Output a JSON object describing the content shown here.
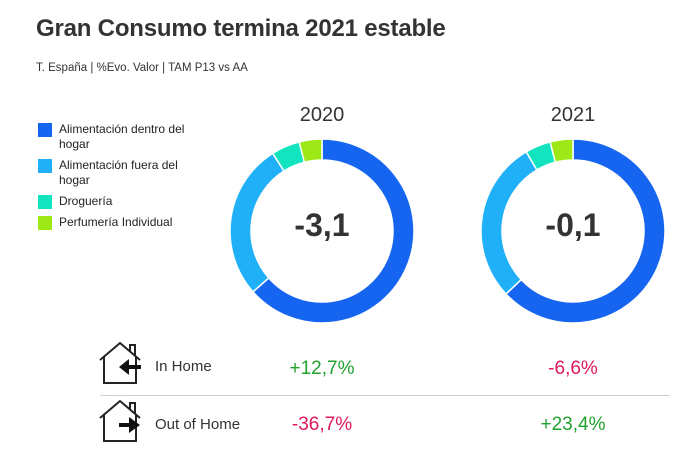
{
  "title": "Gran Consumo termina 2021 estable",
  "subtitle": "T. España | %Evo. Valor |  TAM P13 vs AA",
  "chart_data": {
    "type": "donut",
    "legend": [
      {
        "label": "Alimentación dentro del hogar",
        "color": "#1565f0"
      },
      {
        "label": "Alimentación fuera del hogar",
        "color": "#1fb0f8"
      },
      {
        "label": "Droguería",
        "color": "#13e4c0"
      },
      {
        "label": "Perfumería Individual",
        "color": "#9de816"
      }
    ],
    "charts": [
      {
        "year": "2020",
        "center": "-3,1",
        "shares": [
          63.5,
          27.5,
          5.0,
          4.0
        ]
      },
      {
        "year": "2021",
        "center": "-0,1",
        "shares": [
          63.0,
          28.5,
          4.5,
          4.0
        ]
      }
    ]
  },
  "rows": [
    {
      "label": "In Home",
      "v2020": "+12,7%",
      "v2021": "-6,6%",
      "c2020": "pos",
      "c2021": "neg",
      "arrow": "left"
    },
    {
      "label": "Out of Home",
      "v2020": "-36,7%",
      "v2021": "+23,4%",
      "c2020": "neg",
      "c2021": "pos",
      "arrow": "right"
    }
  ]
}
